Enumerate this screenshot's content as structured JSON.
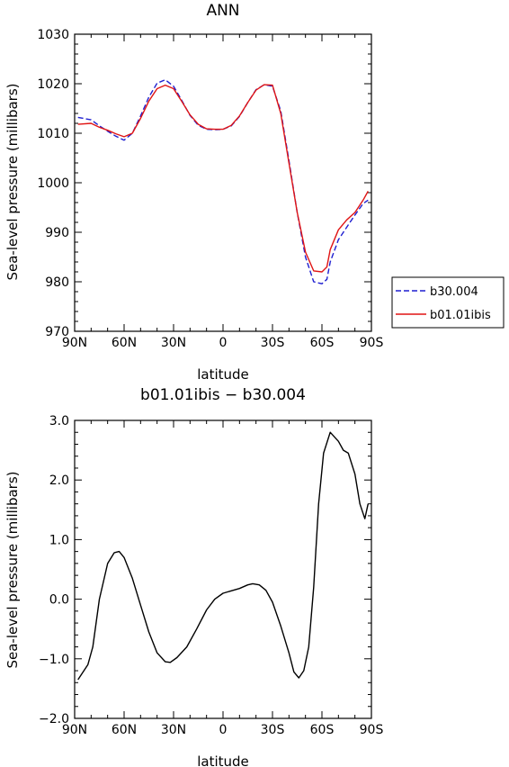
{
  "chart_data": [
    {
      "type": "line",
      "title": "ANN",
      "xlabel": "latitude",
      "ylabel": "Sea-level pressure (millibars)",
      "x_tick_labels": [
        "90N",
        "60N",
        "30N",
        "0",
        "30S",
        "60S",
        "90S"
      ],
      "x_ticks": [
        -90,
        -60,
        -30,
        0,
        30,
        60,
        90
      ],
      "y_tick_labels": [
        "970",
        "980",
        "990",
        "1000",
        "1010",
        "1020",
        "1030"
      ],
      "y_ticks": [
        970,
        980,
        990,
        1000,
        1010,
        1020,
        1030
      ],
      "xlim": [
        -90,
        90
      ],
      "ylim": [
        970,
        1030
      ],
      "grid": false,
      "legend_position": "right",
      "series": [
        {
          "name": "b30.004",
          "color": "#1f1fd0",
          "style": "dashed",
          "x": [
            -88,
            -80,
            -75,
            -70,
            -65,
            -60,
            -55,
            -50,
            -45,
            -40,
            -35,
            -30,
            -25,
            -20,
            -15,
            -10,
            -5,
            0,
            5,
            10,
            15,
            20,
            25,
            30,
            35,
            40,
            45,
            50,
            55,
            60,
            63,
            65,
            70,
            75,
            80,
            85,
            88
          ],
          "y": [
            1013.2,
            1012.7,
            1011.5,
            1010.4,
            1009.4,
            1008.6,
            1010.0,
            1013.5,
            1017.3,
            1020.1,
            1020.8,
            1019.5,
            1016.6,
            1013.6,
            1011.6,
            1010.8,
            1010.7,
            1010.8,
            1011.5,
            1013.4,
            1016.2,
            1018.8,
            1019.8,
            1019.5,
            1014.5,
            1004.5,
            994.0,
            985.0,
            980.0,
            979.6,
            980.5,
            984.0,
            988.5,
            991.0,
            993.5,
            995.8,
            996.5
          ]
        },
        {
          "name": "b01.01ibis",
          "color": "#e01414",
          "style": "solid",
          "x": [
            -88,
            -80,
            -75,
            -70,
            -65,
            -60,
            -55,
            -50,
            -45,
            -40,
            -35,
            -30,
            -25,
            -20,
            -15,
            -10,
            -5,
            0,
            5,
            10,
            15,
            20,
            25,
            30,
            35,
            40,
            45,
            50,
            55,
            60,
            63,
            65,
            70,
            75,
            80,
            85,
            88
          ],
          "y": [
            1011.8,
            1012.0,
            1011.2,
            1010.6,
            1009.9,
            1009.3,
            1010.0,
            1013.0,
            1016.5,
            1019.0,
            1019.7,
            1019.0,
            1016.4,
            1013.7,
            1011.8,
            1010.9,
            1010.8,
            1010.8,
            1011.6,
            1013.5,
            1016.2,
            1018.7,
            1019.8,
            1019.7,
            1014.0,
            1004.0,
            994.0,
            986.0,
            982.2,
            982.0,
            983.0,
            986.5,
            990.5,
            992.5,
            994.0,
            996.5,
            998.3
          ]
        }
      ]
    },
    {
      "type": "line",
      "title": "b01.01ibis − b30.004",
      "xlabel": "latitude",
      "ylabel": "Sea-level pressure (millibars)",
      "x_tick_labels": [
        "90N",
        "60N",
        "30N",
        "0",
        "30S",
        "60S",
        "90S"
      ],
      "x_ticks": [
        -90,
        -60,
        -30,
        0,
        30,
        60,
        90
      ],
      "y_tick_labels": [
        "−2.0",
        "−1.0",
        "0.0",
        "1.0",
        "2.0",
        "3.0"
      ],
      "y_ticks": [
        -2,
        -1,
        0,
        1,
        2,
        3
      ],
      "xlim": [
        -90,
        90
      ],
      "ylim": [
        -2,
        3
      ],
      "grid": false,
      "series": [
        {
          "name": "",
          "color": "#000000",
          "style": "solid",
          "x": [
            -88,
            -82,
            -79,
            -75,
            -70,
            -66,
            -63,
            -60,
            -55,
            -50,
            -45,
            -40,
            -35,
            -32,
            -28,
            -22,
            -16,
            -10,
            -5,
            0,
            5,
            10,
            15,
            18,
            22,
            26,
            30,
            35,
            40,
            43,
            46,
            49,
            52,
            55,
            58,
            61,
            65,
            70,
            73,
            76,
            80,
            83,
            86,
            88
          ],
          "y": [
            -1.35,
            -1.1,
            -0.8,
            0.0,
            0.6,
            0.78,
            0.8,
            0.7,
            0.35,
            -0.1,
            -0.55,
            -0.9,
            -1.05,
            -1.06,
            -0.98,
            -0.8,
            -0.5,
            -0.18,
            0.0,
            0.1,
            0.14,
            0.18,
            0.24,
            0.26,
            0.24,
            0.15,
            -0.05,
            -0.45,
            -0.9,
            -1.22,
            -1.32,
            -1.2,
            -0.8,
            0.2,
            1.6,
            2.45,
            2.8,
            2.65,
            2.5,
            2.45,
            2.1,
            1.6,
            1.35,
            1.6
          ]
        }
      ]
    }
  ]
}
